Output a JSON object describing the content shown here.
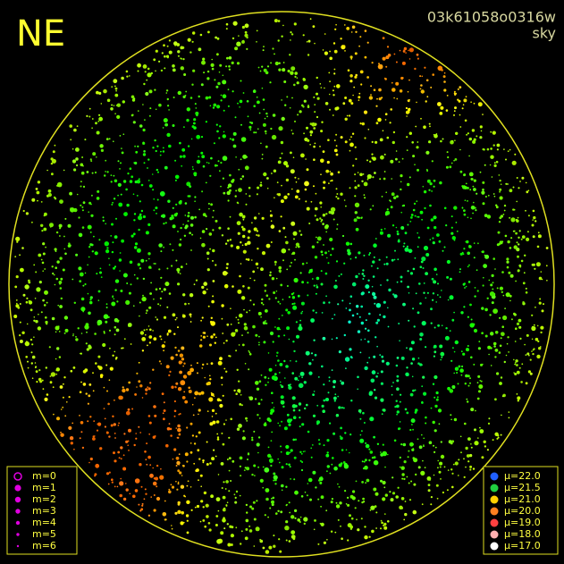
{
  "header": {
    "direction": "NE",
    "image_id": "03k61058o0316w",
    "mode": "sky"
  },
  "magnitude_legend": [
    "m=0",
    "m=1",
    "m=2",
    "m=3",
    "m=4",
    "m=5",
    "m=6"
  ],
  "brightness_legend": [
    "μ=22.0",
    "μ=21.5",
    "μ=21.0",
    "μ=20.0",
    "μ=19.0",
    "μ=18.0",
    "μ=17.0"
  ]
}
